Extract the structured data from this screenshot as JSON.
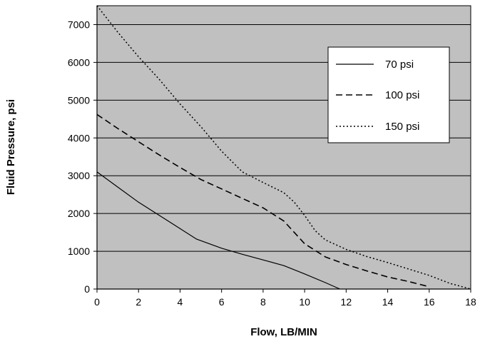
{
  "chart_data": {
    "type": "line",
    "xlabel": "Flow, LB/MIN",
    "ylabel": "Fluid Pressure, psi",
    "xlim": [
      0,
      18
    ],
    "ylim": [
      0,
      7500
    ],
    "x_ticks": [
      "0",
      "2",
      "4",
      "6",
      "8",
      "10",
      "12",
      "14",
      "16",
      "18"
    ],
    "y_ticks": [
      "0",
      "1000",
      "2000",
      "3000",
      "4000",
      "5000",
      "6000",
      "7000"
    ],
    "x_tick_values": [
      0,
      2,
      4,
      6,
      8,
      10,
      12,
      14,
      16,
      18
    ],
    "y_tick_values": [
      0,
      1000,
      2000,
      3000,
      4000,
      5000,
      6000,
      7000
    ],
    "grid": "horizontal",
    "legend_position": "top-right",
    "plot_background": "#c0c0c0",
    "series": [
      {
        "name": "70 psi",
        "style": "solid",
        "color": "#000000",
        "points": [
          [
            0,
            3100
          ],
          [
            1,
            2700
          ],
          [
            2,
            2300
          ],
          [
            3,
            1950
          ],
          [
            4,
            1600
          ],
          [
            4.8,
            1320
          ],
          [
            6,
            1080
          ],
          [
            7,
            920
          ],
          [
            8,
            770
          ],
          [
            9,
            620
          ],
          [
            10,
            400
          ],
          [
            11,
            170
          ],
          [
            11.7,
            0
          ]
        ]
      },
      {
        "name": "100 psi",
        "style": "dashed",
        "color": "#000000",
        "points": [
          [
            0,
            4620
          ],
          [
            1,
            4250
          ],
          [
            2,
            3900
          ],
          [
            3,
            3550
          ],
          [
            4,
            3220
          ],
          [
            5,
            2900
          ],
          [
            6,
            2650
          ],
          [
            7,
            2400
          ],
          [
            8,
            2150
          ],
          [
            9,
            1800
          ],
          [
            10,
            1200
          ],
          [
            11,
            850
          ],
          [
            12,
            650
          ],
          [
            13,
            480
          ],
          [
            14,
            320
          ],
          [
            15,
            200
          ],
          [
            16,
            60
          ]
        ]
      },
      {
        "name": "150 psi",
        "style": "dotted",
        "color": "#000000",
        "points": [
          [
            0,
            7500
          ],
          [
            1,
            6800
          ],
          [
            2,
            6150
          ],
          [
            3,
            5550
          ],
          [
            4,
            4900
          ],
          [
            5,
            4300
          ],
          [
            6,
            3650
          ],
          [
            7,
            3100
          ],
          [
            8,
            2820
          ],
          [
            9,
            2550
          ],
          [
            9.5,
            2300
          ],
          [
            10,
            1950
          ],
          [
            10.5,
            1550
          ],
          [
            11,
            1300
          ],
          [
            12,
            1050
          ],
          [
            13,
            860
          ],
          [
            14,
            700
          ],
          [
            15,
            530
          ],
          [
            16,
            360
          ],
          [
            17,
            150
          ],
          [
            18,
            0
          ]
        ]
      }
    ]
  }
}
